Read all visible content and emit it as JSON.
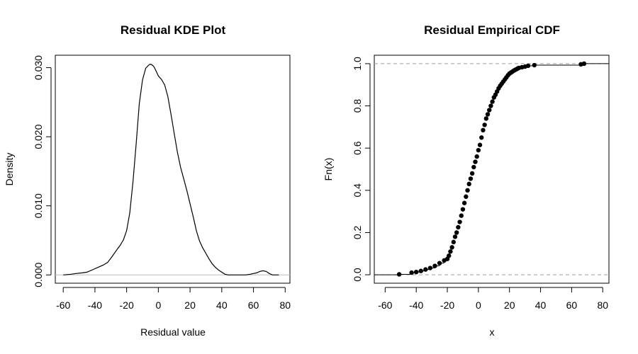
{
  "chart_data": [
    {
      "type": "line",
      "title": "Residual KDE Plot",
      "xlabel": "Residual value",
      "ylabel": "Density",
      "xlim": [
        -65,
        83
      ],
      "ylim": [
        -0.0012,
        0.0318
      ],
      "x_ticks": [
        "-60",
        "-40",
        "-20",
        "0",
        "20",
        "40",
        "60",
        "80"
      ],
      "y_ticks": [
        "0.000",
        "0.010",
        "0.020",
        "0.030"
      ],
      "baseline": 0,
      "series": [
        {
          "x": [
            -60,
            -55,
            -52,
            -48,
            -45,
            -42,
            -40,
            -38,
            -35,
            -32,
            -29,
            -26,
            -24,
            -22,
            -20,
            -18,
            -16,
            -14,
            -12,
            -10,
            -8,
            -6,
            -5,
            -4,
            -3,
            -2,
            -1,
            0,
            2,
            4,
            6,
            8,
            10,
            12,
            14,
            16,
            18,
            20,
            22,
            24,
            26,
            28,
            30,
            32,
            34,
            36,
            38,
            40,
            42,
            44,
            46,
            50,
            55,
            58,
            60,
            62,
            64,
            66,
            68,
            70,
            72,
            76
          ],
          "y": [
            0.0,
            0.0001,
            0.0002,
            0.0003,
            0.0004,
            0.0007,
            0.0009,
            0.0011,
            0.0014,
            0.0018,
            0.0027,
            0.0037,
            0.0043,
            0.0051,
            0.0064,
            0.009,
            0.0135,
            0.019,
            0.0248,
            0.0282,
            0.0299,
            0.0304,
            0.0305,
            0.0304,
            0.0302,
            0.0298,
            0.0293,
            0.0288,
            0.0283,
            0.0275,
            0.0258,
            0.0232,
            0.0205,
            0.0178,
            0.0156,
            0.0139,
            0.0122,
            0.0103,
            0.0084,
            0.0064,
            0.0049,
            0.0039,
            0.0031,
            0.0023,
            0.0016,
            0.0011,
            0.0007,
            0.0004,
            0.0001,
            0.0,
            0.0,
            0.0,
            0.0,
            0.0001,
            0.0002,
            0.0003,
            0.0005,
            0.0006,
            0.0005,
            0.0002,
            0.0,
            0.0
          ]
        }
      ]
    },
    {
      "type": "scatter",
      "title": "Residual Empirical CDF",
      "xlabel": "x",
      "ylabel": "Fn(x)",
      "xlim": [
        -67,
        84
      ],
      "ylim": [
        -0.04,
        1.04
      ],
      "x_ticks": [
        "-60",
        "-40",
        "-20",
        "0",
        "20",
        "40",
        "60",
        "80"
      ],
      "y_ticks": [
        "0.0",
        "0.2",
        "0.4",
        "0.6",
        "0.8",
        "1.0"
      ],
      "reference_lines": [
        0,
        1
      ],
      "series": [
        {
          "x": [
            -51,
            -43,
            -40,
            -37,
            -34,
            -31,
            -28,
            -25,
            -22,
            -20,
            -19,
            -18,
            -17,
            -16,
            -15,
            -14,
            -13,
            -12,
            -11,
            -10,
            -9,
            -8,
            -7,
            -6,
            -5,
            -4,
            -3,
            -2,
            -1,
            0,
            1,
            2,
            3,
            4,
            5,
            6,
            7,
            8,
            9,
            10,
            11,
            12,
            13,
            14,
            15,
            16,
            17,
            18,
            19,
            20,
            21,
            22,
            23,
            24,
            25,
            26,
            28,
            30,
            32,
            36,
            66,
            68
          ],
          "y": [
            0.002,
            0.01,
            0.013,
            0.018,
            0.025,
            0.032,
            0.042,
            0.055,
            0.068,
            0.075,
            0.09,
            0.11,
            0.13,
            0.155,
            0.18,
            0.2,
            0.225,
            0.25,
            0.28,
            0.31,
            0.34,
            0.37,
            0.4,
            0.43,
            0.455,
            0.48,
            0.51,
            0.535,
            0.56,
            0.59,
            0.615,
            0.65,
            0.685,
            0.71,
            0.74,
            0.76,
            0.78,
            0.8,
            0.82,
            0.84,
            0.853,
            0.868,
            0.883,
            0.895,
            0.905,
            0.915,
            0.925,
            0.935,
            0.945,
            0.953,
            0.958,
            0.963,
            0.968,
            0.972,
            0.976,
            0.98,
            0.983,
            0.986,
            0.99,
            0.993,
            0.997,
            1.0
          ]
        }
      ]
    }
  ]
}
